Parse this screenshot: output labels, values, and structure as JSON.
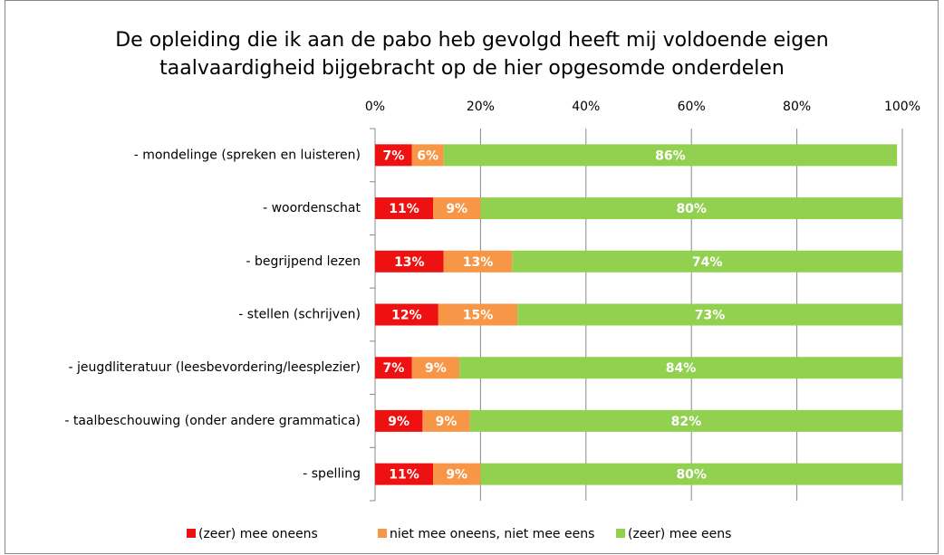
{
  "chart_data": {
    "type": "stacked-bar-horizontal",
    "title": [
      "De opleiding die ik aan de pabo heb gevolgd heeft mij voldoende eigen",
      "taalvaardigheid bijgebracht op de hier opgesomde onderdelen"
    ],
    "categories": [
      "- mondelinge  (spreken en luisteren)",
      "- woordenschat",
      "- begrijpend lezen",
      "- stellen (schrijven)",
      "- jeugdliteratuur (leesbevordering/leesplezier)",
      "- taalbeschouwing (onder andere grammatica)",
      "- spelling"
    ],
    "series": [
      {
        "name": "(zeer) mee oneens",
        "color": "#ee1111",
        "values": [
          7,
          11,
          13,
          12,
          7,
          9,
          11
        ],
        "value_labels": [
          "7%",
          "11%",
          "13%",
          "12%",
          "7%",
          "9%",
          "11%"
        ]
      },
      {
        "name": "niet mee oneens, niet mee eens",
        "color": "#f79646",
        "values": [
          6,
          9,
          13,
          15,
          9,
          9,
          9
        ],
        "value_labels": [
          "6%",
          "9%",
          "13%",
          "15%",
          "9%",
          "9%",
          "9%"
        ]
      },
      {
        "name": "(zeer) mee eens",
        "color": "#92d050",
        "values": [
          86,
          80,
          74,
          73,
          84,
          82,
          80
        ],
        "value_labels": [
          "86%",
          "80%",
          "74%",
          "73%",
          "84%",
          "82%",
          "80%"
        ]
      }
    ],
    "xlim": [
      0,
      100
    ],
    "xticks": [
      {
        "value": 0,
        "label": "0%"
      },
      {
        "value": 20,
        "label": "20%"
      },
      {
        "value": 40,
        "label": "40%"
      },
      {
        "value": 60,
        "label": "60%"
      },
      {
        "value": 80,
        "label": "80%"
      },
      {
        "value": 100,
        "label": "100%"
      }
    ],
    "legend": "bottom"
  }
}
